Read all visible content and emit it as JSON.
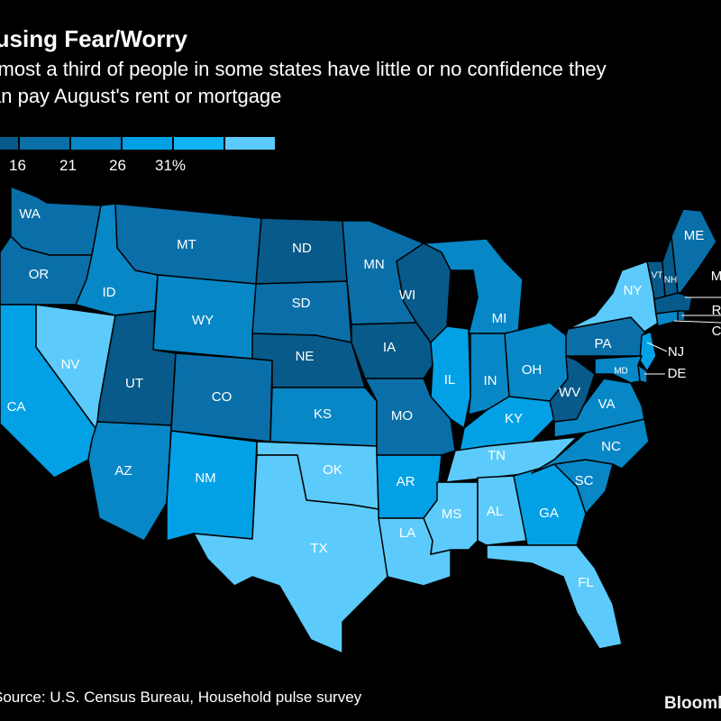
{
  "header": {
    "title": "Housing Fear/Worry",
    "subtitle_line1": "Almost a third of people in some states have little or no confidence they",
    "subtitle_line2": "can pay August's rent or mortgage"
  },
  "legend": {
    "colors": [
      "#075a89",
      "#0a6fa8",
      "#0787c6",
      "#02a1e6",
      "#12b4f8",
      "#5ccbfb"
    ],
    "ticks": [
      "16",
      "21",
      "26",
      "31%"
    ]
  },
  "map": {
    "states": {
      "WA": {
        "label": "WA",
        "color": "#0a6fa8"
      },
      "OR": {
        "label": "OR",
        "color": "#0a6fa8"
      },
      "CA": {
        "label": "CA",
        "color": "#02a1e6"
      },
      "ID": {
        "label": "ID",
        "color": "#0787c6"
      },
      "NV": {
        "label": "NV",
        "color": "#5ccbfb"
      },
      "MT": {
        "label": "MT",
        "color": "#0a6fa8"
      },
      "WY": {
        "label": "WY",
        "color": "#0787c6"
      },
      "UT": {
        "label": "UT",
        "color": "#075a89"
      },
      "AZ": {
        "label": "AZ",
        "color": "#0787c6"
      },
      "CO": {
        "label": "CO",
        "color": "#0a6fa8"
      },
      "NM": {
        "label": "NM",
        "color": "#02a1e6"
      },
      "ND": {
        "label": "ND",
        "color": "#075a89"
      },
      "SD": {
        "label": "SD",
        "color": "#0a6fa8"
      },
      "NE": {
        "label": "NE",
        "color": "#075a89"
      },
      "KS": {
        "label": "KS",
        "color": "#0787c6"
      },
      "OK": {
        "label": "OK",
        "color": "#5ccbfb"
      },
      "TX": {
        "label": "TX",
        "color": "#5ccbfb"
      },
      "MN": {
        "label": "MN",
        "color": "#0a6fa8"
      },
      "IA": {
        "label": "IA",
        "color": "#075a89"
      },
      "MO": {
        "label": "MO",
        "color": "#0a6fa8"
      },
      "AR": {
        "label": "AR",
        "color": "#02a1e6"
      },
      "LA": {
        "label": "LA",
        "color": "#5ccbfb"
      },
      "WI": {
        "label": "WI",
        "color": "#075a89"
      },
      "IL": {
        "label": "IL",
        "color": "#02a1e6"
      },
      "MI": {
        "label": "MI",
        "color": "#0787c6"
      },
      "IN": {
        "label": "IN",
        "color": "#0787c6"
      },
      "OH": {
        "label": "OH",
        "color": "#0787c6"
      },
      "KY": {
        "label": "KY",
        "color": "#02a1e6"
      },
      "TN": {
        "label": "TN",
        "color": "#5ccbfb"
      },
      "MS": {
        "label": "MS",
        "color": "#5ccbfb"
      },
      "AL": {
        "label": "AL",
        "color": "#5ccbfb"
      },
      "GA": {
        "label": "GA",
        "color": "#02a1e6"
      },
      "FL": {
        "label": "FL",
        "color": "#5ccbfb"
      },
      "SC": {
        "label": "SC",
        "color": "#0787c6"
      },
      "NC": {
        "label": "NC",
        "color": "#0787c6"
      },
      "VA": {
        "label": "VA",
        "color": "#0787c6"
      },
      "WV": {
        "label": "WV",
        "color": "#075a89"
      },
      "PA": {
        "label": "PA",
        "color": "#0a6fa8"
      },
      "NY": {
        "label": "NY",
        "color": "#5ccbfb"
      },
      "NJ": {
        "label": "NJ",
        "color": "#02a1e6"
      },
      "DE": {
        "label": "DE",
        "color": "#0787c6"
      },
      "MD": {
        "label": "MD",
        "color": "#0787c6"
      },
      "VT": {
        "label": "VT",
        "color": "#075a89"
      },
      "NH": {
        "label": "NH",
        "color": "#075a89"
      },
      "ME": {
        "label": "ME",
        "color": "#0a6fa8"
      },
      "MA": {
        "label": "M",
        "color": "#075a89"
      },
      "RI": {
        "label": "R",
        "color": "#0a6fa8"
      },
      "CT": {
        "label": "C",
        "color": "#0787c6"
      }
    }
  },
  "footer": {
    "source": "Source: U.S. Census Bureau, Household pulse survey",
    "brand": "Bloomberg"
  }
}
